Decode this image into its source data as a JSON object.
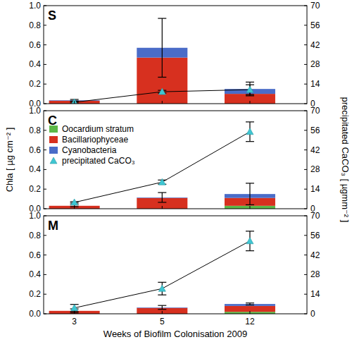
{
  "chart_data": [
    {
      "type": "bar",
      "title": "S",
      "categories": [
        null,
        null,
        null
      ],
      "stacked": true,
      "series": [
        {
          "name": "Oocardium stratum",
          "color": "#5cb848",
          "values": [
            0,
            0,
            0
          ]
        },
        {
          "name": "Bacillariophyceae",
          "color": "#d7301f",
          "values": [
            0.03,
            0.47,
            0.1
          ]
        },
        {
          "name": "Cyanobacteria",
          "color": "#4a6cc8",
          "values": [
            0.005,
            0.1,
            0.05
          ]
        },
        {
          "name": "precipitated CaCO₃",
          "type": "line",
          "axis": "y2",
          "color": "#3fc6d2",
          "marker": "triangle",
          "values": [
            1,
            8.5,
            10
          ],
          "errors": [
            0.5,
            1,
            3.5
          ]
        }
      ],
      "stack_errors": [
        0.008,
        0.3,
        0.07
      ],
      "ylim": [
        0,
        1
      ],
      "yticks": [
        {
          "value": 0,
          "label": "0.0"
        },
        0.2,
        0.4,
        0.6,
        0.8,
        {
          "value": 1,
          "label": "1.0"
        }
      ],
      "y2lim": [
        0,
        70
      ],
      "y2ticks": [
        0,
        14,
        28,
        42,
        56,
        70
      ]
    },
    {
      "type": "bar",
      "title": "C",
      "categories": [
        null,
        null,
        null
      ],
      "stacked": true,
      "legend": "upper left",
      "ylabel": "Chla [ µg cm⁻² ]",
      "y2label": "precipitated CaCO₃ [ µgmm⁻² ]",
      "series": [
        {
          "name": "Oocardium stratum",
          "color": "#5cb848",
          "values": [
            0,
            0,
            0.03
          ]
        },
        {
          "name": "Bacillariophyceae",
          "color": "#d7301f",
          "values": [
            0.03,
            0.11,
            0.08
          ]
        },
        {
          "name": "Cyanobacteria",
          "color": "#4a6cc8",
          "values": [
            0,
            0.005,
            0.04
          ]
        },
        {
          "name": "precipitated CaCO₃",
          "type": "line",
          "axis": "y2",
          "color": "#3fc6d2",
          "marker": "triangle",
          "values": [
            4.5,
            19,
            55
          ],
          "errors": [
            0.5,
            1.5,
            7
          ]
        }
      ],
      "stack_errors": [
        0.01,
        0.05,
        0.11
      ],
      "ylim": [
        0,
        1
      ],
      "yticks": [
        {
          "value": 0,
          "label": "0.0"
        },
        0.2,
        0.4,
        0.6,
        0.8,
        {
          "value": 1,
          "label": "1.0"
        }
      ],
      "y2lim": [
        0,
        70
      ],
      "y2ticks": [
        0,
        14,
        28,
        42,
        56,
        70
      ]
    },
    {
      "type": "bar",
      "title": "M",
      "categories": [
        "3",
        "5",
        "12"
      ],
      "stacked": true,
      "xlabel": "Weeks of Biofilm Colonisation 2009",
      "series": [
        {
          "name": "Oocardium stratum",
          "color": "#5cb848",
          "values": [
            0,
            0,
            0.02
          ]
        },
        {
          "name": "Bacillariophyceae",
          "color": "#d7301f",
          "values": [
            0.03,
            0.06,
            0.06
          ]
        },
        {
          "name": "Cyanobacteria",
          "color": "#4a6cc8",
          "values": [
            0,
            0.005,
            0.02
          ]
        },
        {
          "name": "precipitated CaCO₃",
          "type": "line",
          "axis": "y2",
          "color": "#3fc6d2",
          "marker": "triangle",
          "values": [
            4.2,
            18,
            52
          ],
          "errors": [
            2.5,
            4.5,
            7
          ]
        }
      ],
      "stack_errors": [
        0.02,
        0.02,
        0.01
      ],
      "ylim": [
        0,
        1
      ],
      "yticks": [
        {
          "value": 0,
          "label": "0.0"
        },
        0.2,
        0.4,
        0.6,
        0.8,
        {
          "value": 1,
          "label": "1.0"
        }
      ],
      "y2lim": [
        0,
        70
      ],
      "y2ticks": [
        0,
        14,
        28,
        42,
        56,
        70
      ]
    }
  ]
}
